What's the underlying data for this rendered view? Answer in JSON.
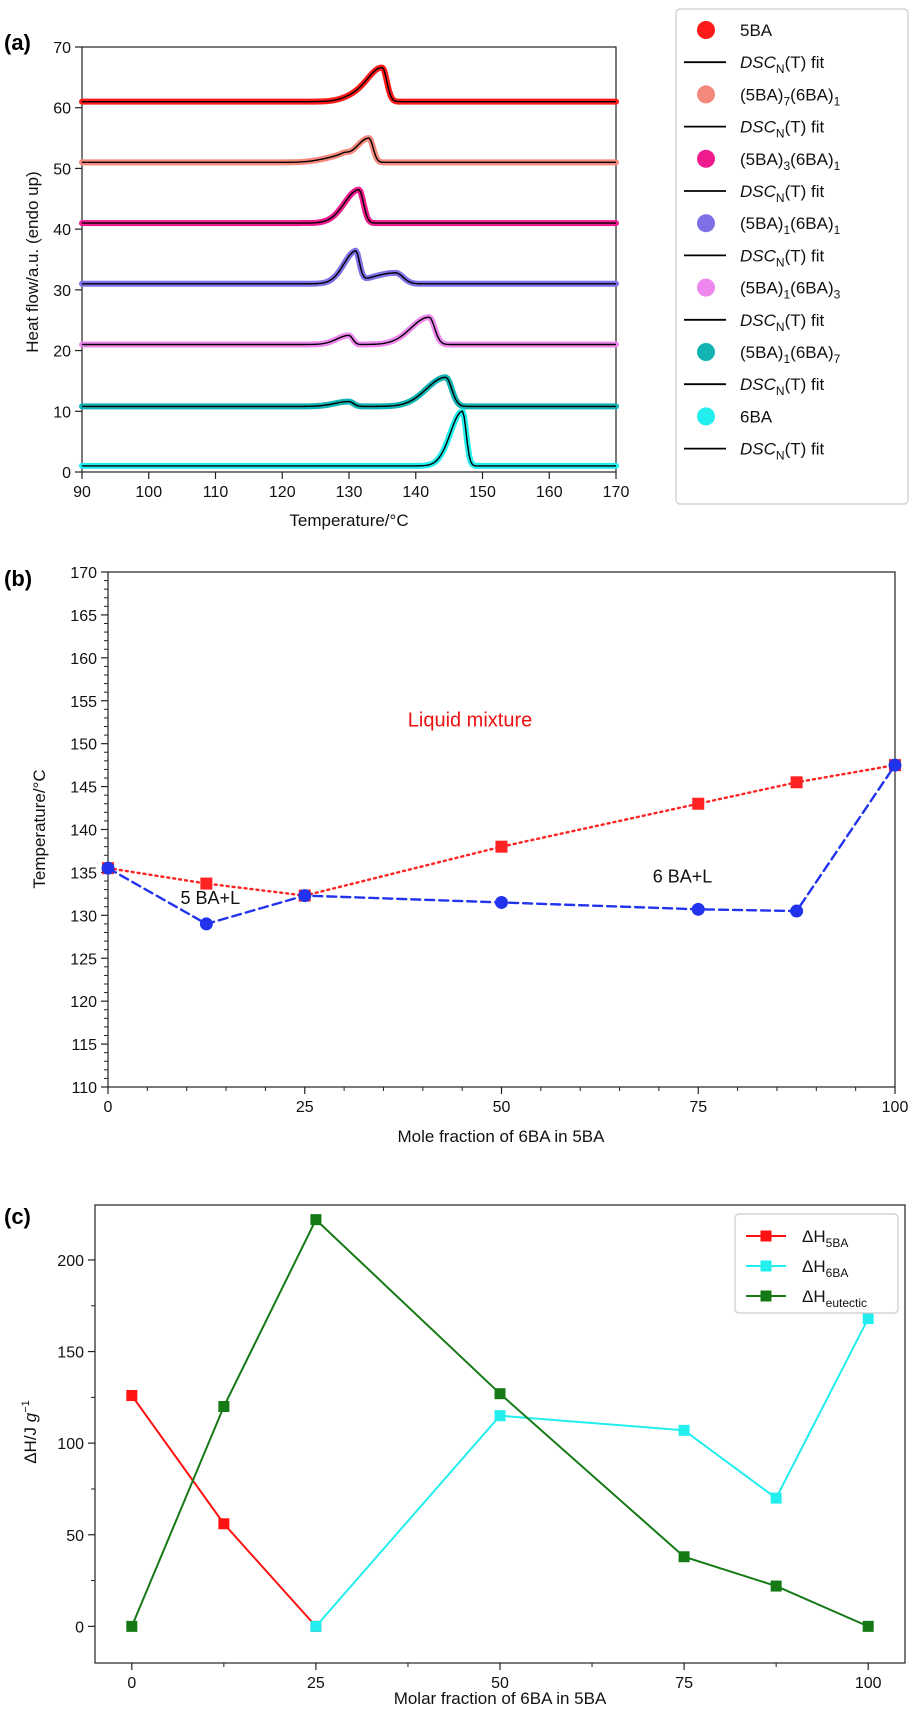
{
  "chart_data": [
    {
      "panel": "(a)",
      "type": "line",
      "xlabel": "Temperature/°C",
      "ylabel": "Heat flow/a.u. (endo up)",
      "xlim": [
        90,
        170
      ],
      "ylim": [
        0,
        70
      ],
      "xticks": [
        90,
        100,
        110,
        120,
        130,
        140,
        150,
        160,
        170
      ],
      "yticks": [
        0,
        10,
        20,
        30,
        40,
        50,
        60,
        70
      ],
      "grid": false,
      "legend_position": "outside-right",
      "fit_label": "DSC",
      "fit_label_sub": "N",
      "fit_label_tail": "(T) fit",
      "series": [
        {
          "name": "5BA",
          "label_parts": [
            "5BA"
          ],
          "color": "#ff1a1a",
          "baseline": 61,
          "peaks": [
            {
              "t": 135,
              "h": 5.5,
              "w": 1.2
            }
          ],
          "shoulder": {
            "t": 131,
            "h": 0.8
          }
        },
        {
          "name": "(5BA)7(6BA)1",
          "label_parts": [
            "(5BA)",
            "7",
            "(6BA)",
            "1"
          ],
          "color": "#f4887a",
          "baseline": 51,
          "peaks": [
            {
              "t": 133,
              "h": 4.0,
              "w": 1.1
            },
            {
              "t": 129,
              "h": 1.0,
              "w": 1.5
            }
          ]
        },
        {
          "name": "(5BA)3(6BA)1",
          "label_parts": [
            "(5BA)",
            "3",
            "(6BA)",
            "1"
          ],
          "color": "#ee1a8e",
          "baseline": 41,
          "peaks": [
            {
              "t": 131.5,
              "h": 5.5,
              "w": 1.2
            }
          ]
        },
        {
          "name": "(5BA)1(6BA)1",
          "label_parts": [
            "(5BA)",
            "1",
            "(6BA)",
            "1"
          ],
          "color": "#7f70e8",
          "baseline": 31,
          "peaks": [
            {
              "t": 131,
              "h": 5.0,
              "w": 1.0
            },
            {
              "t": 137,
              "h": 1.8,
              "w": 2.0
            }
          ]
        },
        {
          "name": "(5BA)1(6BA)3",
          "label_parts": [
            "(5BA)",
            "1",
            "(6BA)",
            "3"
          ],
          "color": "#ee88ee",
          "baseline": 21,
          "peaks": [
            {
              "t": 130,
              "h": 1.5,
              "w": 1.0
            },
            {
              "t": 142,
              "h": 4.5,
              "w": 1.5
            }
          ]
        },
        {
          "name": "(5BA)1(6BA)7",
          "label_parts": [
            "(5BA)",
            "1",
            "(6BA)",
            "7"
          ],
          "color": "#12b3b3",
          "baseline": 10.8,
          "peaks": [
            {
              "t": 130,
              "h": 0.8,
              "w": 1.2
            },
            {
              "t": 144.5,
              "h": 4.8,
              "w": 1.6
            }
          ]
        },
        {
          "name": "6BA",
          "label_parts": [
            "6BA"
          ],
          "color": "#22eeee",
          "baseline": 1,
          "peaks": [
            {
              "t": 147,
              "h": 9.0,
              "w": 1.0
            }
          ]
        }
      ]
    },
    {
      "panel": "(b)",
      "type": "line",
      "xlabel": "Mole fraction of 6BA in 5BA",
      "ylabel": "Temperature/°C",
      "xlim": [
        0,
        100
      ],
      "ylim": [
        110,
        170
      ],
      "xticks": [
        0,
        25,
        50,
        75,
        100
      ],
      "yticks": [
        110,
        115,
        120,
        125,
        130,
        135,
        140,
        145,
        150,
        155,
        160,
        165,
        170
      ],
      "grid": false,
      "series": [
        {
          "name": "",
          "style": "dotted",
          "marker": "square",
          "color": "#ff2222",
          "x": [
            0,
            12.5,
            25,
            50,
            75,
            87.5,
            100
          ],
          "y": [
            135.5,
            133.7,
            132.3,
            138,
            143,
            145.5,
            147.5
          ]
        },
        {
          "name": "",
          "style": "dashed",
          "marker": "circle",
          "color": "#2233ee",
          "x": [
            0,
            12.5,
            25,
            50,
            75,
            87.5,
            100
          ],
          "y": [
            135.5,
            129,
            132.3,
            131.5,
            130.7,
            130.5,
            147.5
          ]
        }
      ],
      "annotations": [
        {
          "text": "Liquid mixture",
          "x": 46,
          "y": 152,
          "color": "#ee1111"
        },
        {
          "text": "5 BA+L",
          "x": 13,
          "y": 131.3,
          "color": "#111111"
        },
        {
          "text": "6 BA+L",
          "x": 73,
          "y": 133.8,
          "color": "#111111"
        }
      ]
    },
    {
      "panel": "(c)",
      "type": "line",
      "xlabel": "Molar fraction of 6BA in 5BA",
      "ylabel": "ΔH/J g−1",
      "xlim": [
        -5,
        105
      ],
      "ylim": [
        -20,
        230
      ],
      "xticks": [
        0,
        25,
        50,
        75,
        100
      ],
      "yticks": [
        0,
        50,
        100,
        150,
        200
      ],
      "grid": false,
      "legend_position": "top-right",
      "series": [
        {
          "name": "ΔH5BA",
          "label_main": "ΔH",
          "label_sub": "5BA",
          "marker": "square",
          "color": "#ff1111",
          "x": [
            0,
            12.5,
            25
          ],
          "y": [
            126,
            56,
            0
          ]
        },
        {
          "name": "ΔH6BA",
          "label_main": "ΔH",
          "label_sub": "6BA",
          "marker": "square",
          "color": "#22eeee",
          "x": [
            25,
            50,
            75,
            87.5,
            100
          ],
          "y": [
            0,
            115,
            107,
            70,
            168
          ]
        },
        {
          "name": "ΔHeutectic",
          "label_main": "ΔH",
          "label_sub": "eutectic",
          "marker": "square",
          "color": "#157a15",
          "x": [
            0,
            12.5,
            25,
            50,
            75,
            87.5,
            100
          ],
          "y": [
            0,
            120,
            222,
            127,
            38,
            22,
            0
          ]
        }
      ]
    }
  ]
}
